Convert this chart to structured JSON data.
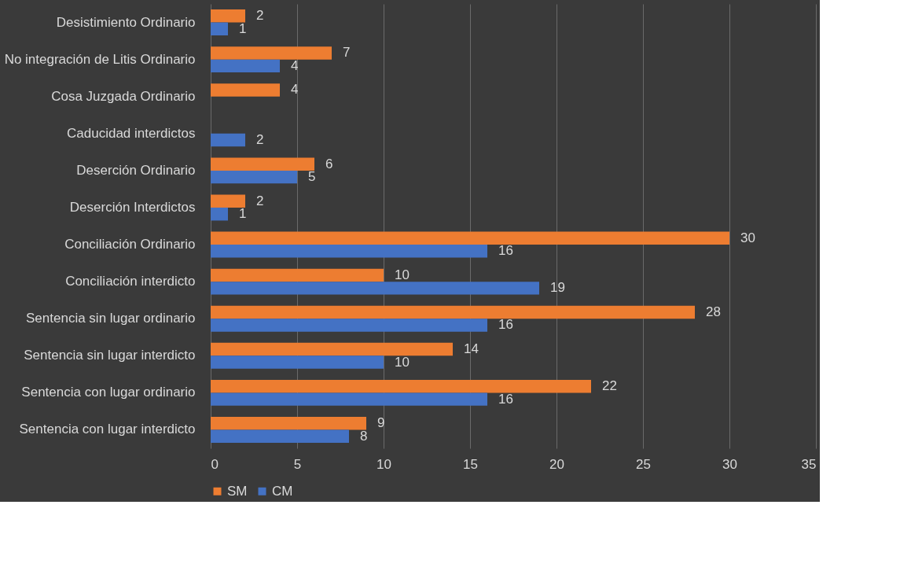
{
  "chart_data": {
    "type": "bar",
    "orientation": "horizontal",
    "categories": [
      "Desistimiento Ordinario",
      "No integración de Litis Ordinario",
      "Cosa Juzgada Ordinario",
      "Caducidad interdictos",
      "Deserción Ordinario",
      "Deserción Interdictos",
      "Conciliación Ordinario",
      "Conciliación interdicto",
      "Sentencia sin lugar ordinario",
      "Sentencia sin lugar interdicto",
      "Sentencia con lugar ordinario",
      "Sentencia con lugar interdicto"
    ],
    "series": [
      {
        "name": "SM",
        "color": "#ed7d31",
        "values": [
          2,
          7,
          4,
          null,
          6,
          2,
          30,
          10,
          28,
          14,
          22,
          9
        ]
      },
      {
        "name": "CM",
        "color": "#4472c4",
        "values": [
          1,
          4,
          null,
          2,
          5,
          1,
          16,
          19,
          16,
          10,
          16,
          8
        ]
      }
    ],
    "xlim": [
      0,
      35
    ],
    "xticks": [
      0,
      5,
      10,
      15,
      20,
      25,
      30,
      35
    ],
    "grid": "x",
    "legend": "bottom",
    "data_labels": true
  }
}
